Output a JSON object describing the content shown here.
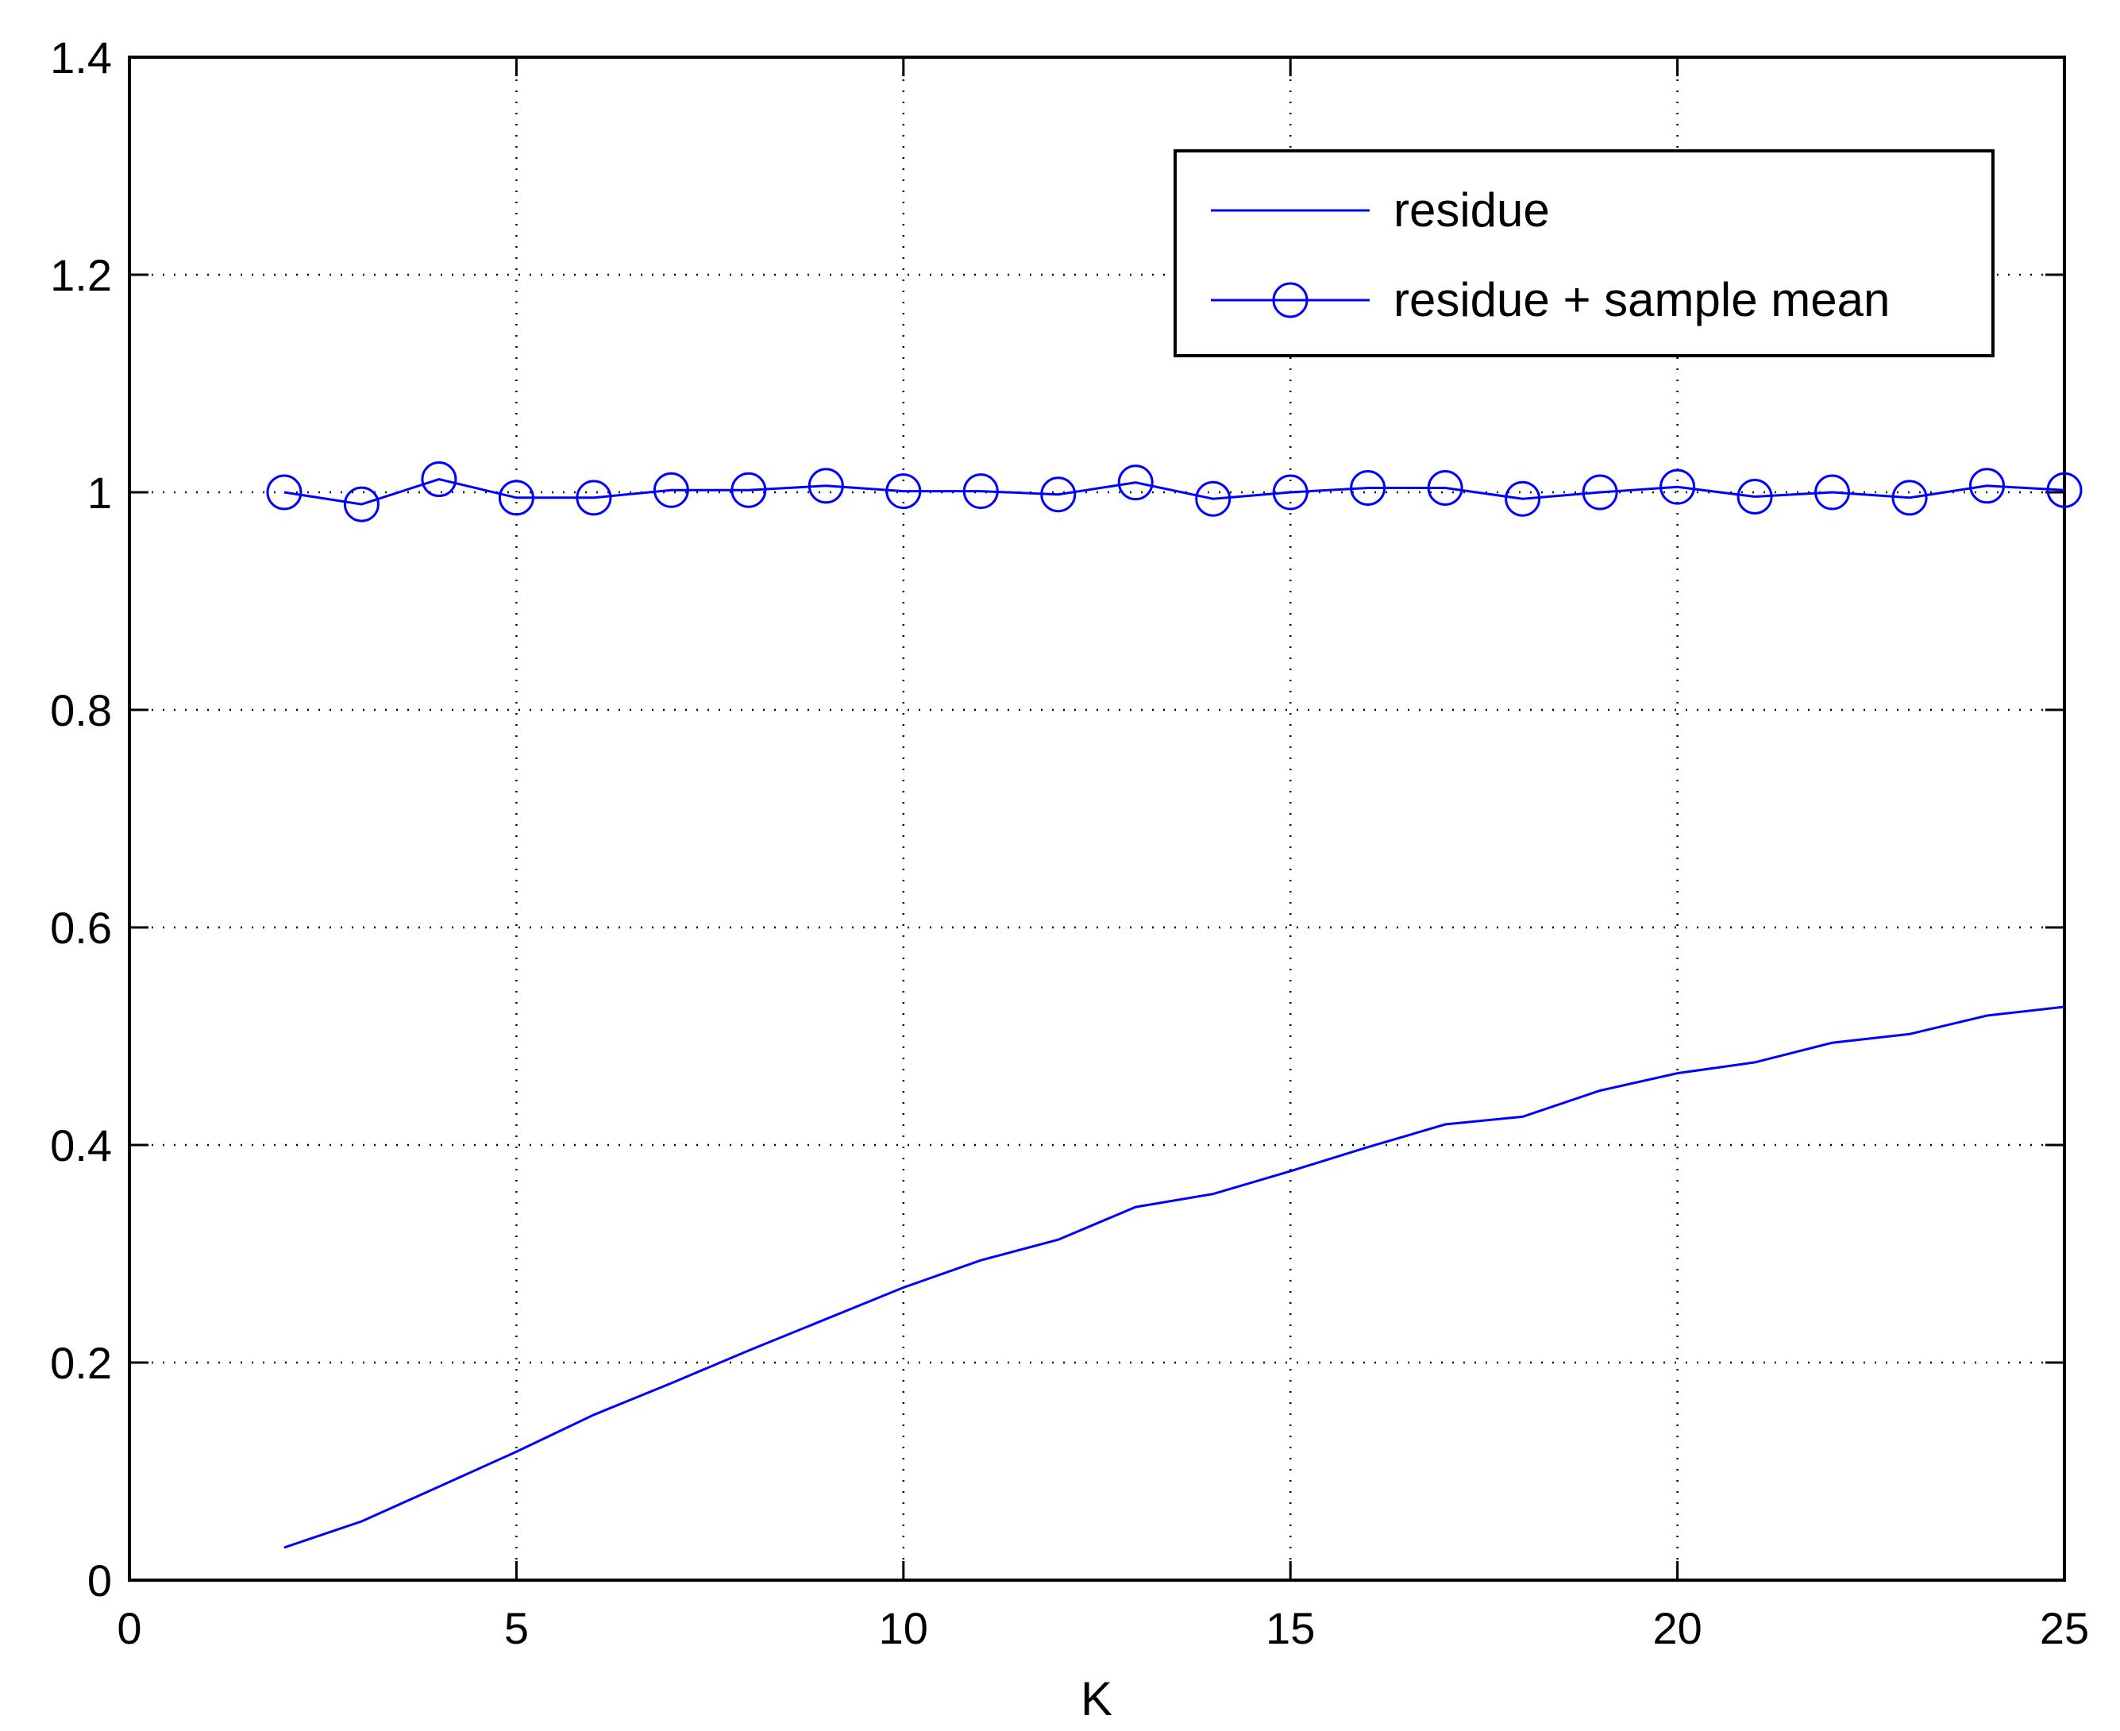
{
  "chart_data": {
    "type": "line",
    "title": "",
    "xlabel": "K",
    "ylabel": "",
    "xlim": [
      0,
      25
    ],
    "ylim": [
      0,
      1.4
    ],
    "xticks": [
      0,
      5,
      10,
      15,
      20,
      25
    ],
    "yticks": [
      0,
      0.2,
      0.4,
      0.6,
      0.8,
      1,
      1.2,
      1.4
    ],
    "xtick_labels": [
      "0",
      "5",
      "10",
      "15",
      "20",
      "25"
    ],
    "ytick_labels": [
      "0",
      "0.2",
      "0.4",
      "0.6",
      "0.8",
      "1",
      "1.2",
      "1.4"
    ],
    "grid": true,
    "legend_position": "top-right",
    "series_color": "#0000ff",
    "series": [
      {
        "name": "residue",
        "marker": "none",
        "x": [
          2,
          3,
          4,
          5,
          6,
          7,
          8,
          9,
          10,
          11,
          12,
          13,
          14,
          15,
          16,
          17,
          18,
          19,
          20,
          21,
          22,
          23,
          24,
          25
        ],
        "y": [
          0.03,
          0.054,
          0.086,
          0.118,
          0.152,
          0.181,
          0.211,
          0.24,
          0.269,
          0.294,
          0.313,
          0.343,
          0.355,
          0.376,
          0.398,
          0.419,
          0.426,
          0.45,
          0.466,
          0.476,
          0.494,
          0.502,
          0.519,
          0.527
        ]
      },
      {
        "name": "residue + sample mean",
        "marker": "circle",
        "x": [
          2,
          3,
          4,
          5,
          6,
          7,
          8,
          9,
          10,
          11,
          12,
          13,
          14,
          15,
          16,
          17,
          18,
          19,
          20,
          21,
          22,
          23,
          24,
          25
        ],
        "y": [
          1.0,
          0.989,
          1.012,
          0.995,
          0.995,
          1.002,
          1.002,
          1.006,
          1.001,
          1.001,
          0.998,
          1.009,
          0.994,
          1.0,
          1.004,
          1.004,
          0.994,
          1.0,
          1.005,
          0.996,
          1.0,
          0.995,
          1.006,
          1.002
        ]
      }
    ]
  }
}
